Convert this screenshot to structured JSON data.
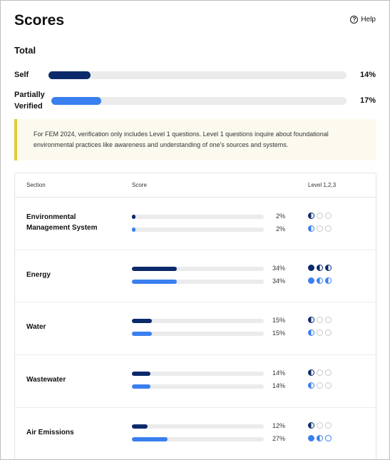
{
  "header": {
    "title": "Scores",
    "help_label": "Help"
  },
  "total": {
    "title": "Total",
    "self": {
      "label": "Self",
      "percent": 14,
      "percent_label": "14%"
    },
    "verified": {
      "label": "Partially Verified",
      "percent": 17,
      "percent_label": "17%"
    }
  },
  "notice": {
    "text": "For FEM 2024, verification only includes Level 1 questions. Level 1 questions inquire about foundational environmental practices like awareness and understanding of one's sources and systems."
  },
  "table": {
    "headers": {
      "section": "Section",
      "score": "Score",
      "levels": "Level 1,2,3"
    },
    "rows": [
      {
        "name": "Environmental Management System",
        "self_pct": 2,
        "self_label": "2%",
        "verified_pct": 2,
        "verified_label": "2%",
        "self_levels": [
          "half",
          "empty",
          "empty"
        ],
        "verified_levels": [
          "half",
          "empty",
          "empty"
        ]
      },
      {
        "name": "Energy",
        "self_pct": 34,
        "self_label": "34%",
        "verified_pct": 34,
        "verified_label": "34%",
        "self_levels": [
          "full",
          "half",
          "half"
        ],
        "verified_levels": [
          "full",
          "half",
          "half"
        ]
      },
      {
        "name": "Water",
        "self_pct": 15,
        "self_label": "15%",
        "verified_pct": 15,
        "verified_label": "15%",
        "self_levels": [
          "half",
          "empty",
          "empty"
        ],
        "verified_levels": [
          "half",
          "empty",
          "empty"
        ]
      },
      {
        "name": "Wastewater",
        "self_pct": 14,
        "self_label": "14%",
        "verified_pct": 14,
        "verified_label": "14%",
        "self_levels": [
          "half",
          "empty",
          "empty"
        ],
        "verified_levels": [
          "half",
          "empty",
          "empty"
        ]
      },
      {
        "name": "Air Emissions",
        "self_pct": 12,
        "self_label": "12%",
        "verified_pct": 27,
        "verified_label": "27%",
        "self_levels": [
          "half",
          "empty",
          "empty"
        ],
        "verified_levels": [
          "full",
          "half",
          "ring"
        ]
      }
    ]
  },
  "colors": {
    "self": "#0b2a6b",
    "verified": "#3a7fef",
    "notice_accent": "#e0cc35"
  }
}
